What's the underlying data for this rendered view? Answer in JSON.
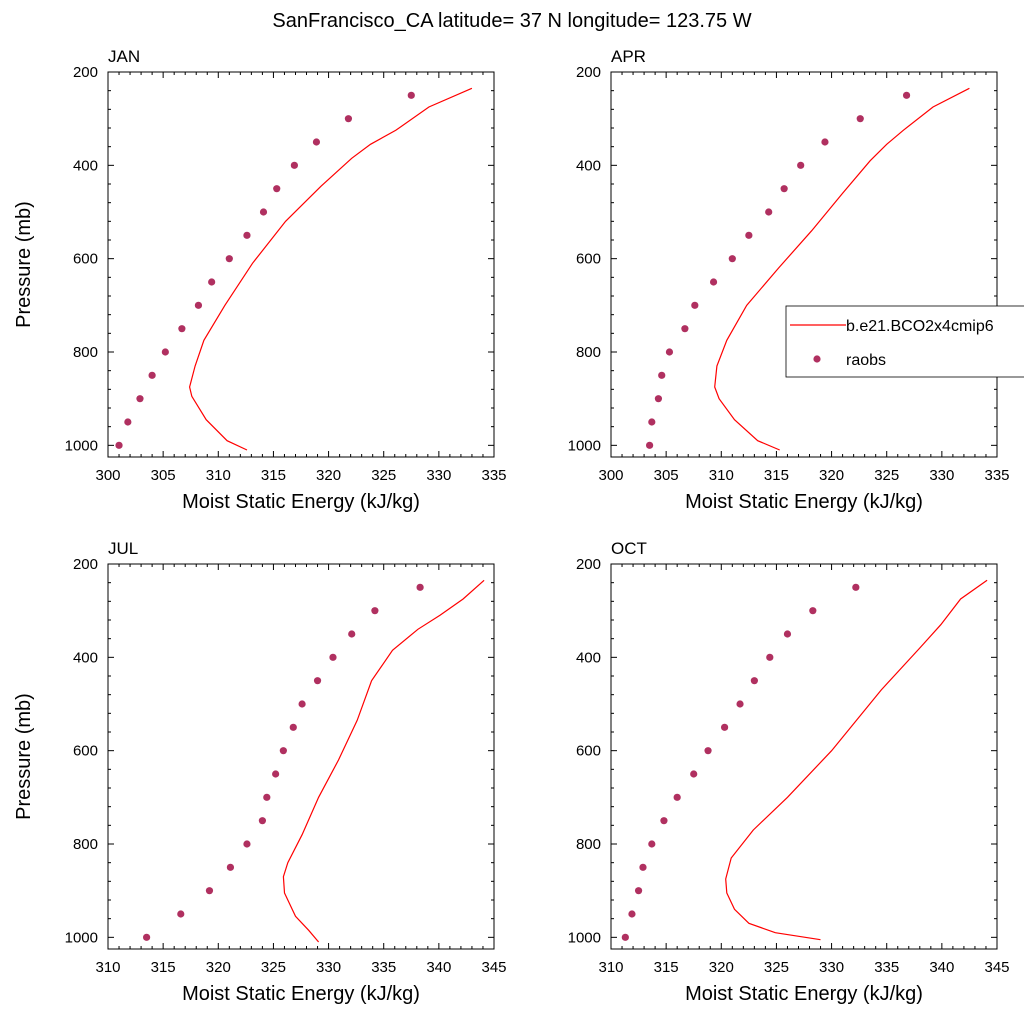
{
  "title": "SanFrancisco_CA  latitude= 37 N longitude= 123.75 W",
  "colors": {
    "model": "#ff0000",
    "obs": "#b03060"
  },
  "legend": {
    "model_label": "b.e21.BCO2x4cmip6",
    "obs_label": "raobs"
  },
  "chart_data": [
    {
      "type": "scatter",
      "title": "JAN",
      "xlabel": "Moist Static Energy (kJ/kg)",
      "ylabel": "Pressure (mb)",
      "xlim": [
        300,
        335
      ],
      "ylim": [
        1025,
        200
      ],
      "xticks": [
        300,
        305,
        310,
        315,
        320,
        325,
        330,
        335
      ],
      "yticks": [
        200,
        400,
        600,
        800,
        1000
      ],
      "series": [
        {
          "name": "b.e21.BCO2x4cmip6",
          "kind": "line",
          "x": [
            312.6,
            310.8,
            308.9,
            307.6,
            307.4,
            307.9,
            308.7,
            310.6,
            313.1,
            316.1,
            319.3,
            322.1,
            323.8,
            326.1,
            329.1,
            333.0
          ],
          "y": [
            1010,
            990,
            945,
            895,
            875,
            830,
            775,
            700,
            610,
            520,
            445,
            385,
            355,
            325,
            275,
            235
          ]
        },
        {
          "name": "raobs",
          "kind": "points",
          "x": [
            301.0,
            301.8,
            302.9,
            304.0,
            305.2,
            306.7,
            308.2,
            309.4,
            311.0,
            312.6,
            314.1,
            315.3,
            316.9,
            318.9,
            321.8,
            327.5
          ],
          "y": [
            1000,
            950,
            900,
            850,
            800,
            750,
            700,
            650,
            600,
            550,
            500,
            450,
            400,
            350,
            300,
            250
          ]
        }
      ]
    },
    {
      "type": "scatter",
      "title": "APR",
      "xlabel": "Moist Static Energy (kJ/kg)",
      "ylabel": "",
      "xlim": [
        300,
        335
      ],
      "ylim": [
        1025,
        200
      ],
      "xticks": [
        300,
        305,
        310,
        315,
        320,
        325,
        330,
        335
      ],
      "yticks": [
        200,
        400,
        600,
        800,
        1000
      ],
      "series": [
        {
          "name": "b.e21.BCO2x4cmip6",
          "kind": "line",
          "x": [
            315.3,
            313.3,
            311.2,
            309.8,
            309.4,
            309.6,
            310.5,
            312.3,
            315.2,
            318.2,
            321.0,
            323.5,
            325.0,
            326.5,
            329.2,
            332.5
          ],
          "y": [
            1010,
            990,
            945,
            900,
            875,
            830,
            775,
            700,
            620,
            540,
            460,
            390,
            355,
            325,
            275,
            235
          ]
        },
        {
          "name": "raobs",
          "kind": "points",
          "x": [
            303.5,
            303.7,
            304.3,
            304.6,
            305.3,
            306.7,
            307.6,
            309.3,
            311.0,
            312.5,
            314.3,
            315.7,
            317.2,
            319.4,
            322.6,
            326.8
          ],
          "y": [
            1000,
            950,
            900,
            850,
            800,
            750,
            700,
            650,
            600,
            550,
            500,
            450,
            400,
            350,
            300,
            250
          ]
        }
      ]
    },
    {
      "type": "scatter",
      "title": "JUL",
      "xlabel": "Moist Static Energy (kJ/kg)",
      "ylabel": "Pressure (mb)",
      "xlim": [
        310,
        345
      ],
      "ylim": [
        1025,
        200
      ],
      "xticks": [
        310,
        315,
        320,
        325,
        330,
        335,
        340,
        345
      ],
      "yticks": [
        200,
        400,
        600,
        800,
        1000
      ],
      "series": [
        {
          "name": "b.e21.BCO2x4cmip6",
          "kind": "line",
          "x": [
            329.1,
            328.2,
            327.0,
            326.0,
            325.9,
            326.3,
            327.6,
            329.1,
            330.9,
            332.6,
            333.9,
            335.8,
            338.1,
            340.1,
            342.2,
            344.1
          ],
          "y": [
            1010,
            985,
            955,
            905,
            870,
            840,
            780,
            700,
            620,
            535,
            450,
            385,
            340,
            310,
            275,
            235
          ]
        },
        {
          "name": "raobs",
          "kind": "points",
          "x": [
            313.5,
            316.6,
            319.2,
            321.1,
            322.6,
            324.0,
            324.4,
            325.2,
            325.9,
            326.8,
            327.6,
            329.0,
            330.4,
            332.1,
            334.2,
            338.3
          ],
          "y": [
            1000,
            950,
            900,
            850,
            800,
            750,
            700,
            650,
            600,
            550,
            500,
            450,
            400,
            350,
            300,
            250
          ]
        }
      ]
    },
    {
      "type": "scatter",
      "title": "OCT",
      "xlabel": "Moist Static Energy (kJ/kg)",
      "ylabel": "",
      "xlim": [
        310,
        345
      ],
      "ylim": [
        1025,
        200
      ],
      "xticks": [
        310,
        315,
        320,
        325,
        330,
        335,
        340,
        345
      ],
      "yticks": [
        200,
        400,
        600,
        800,
        1000
      ],
      "series": [
        {
          "name": "b.e21.BCO2x4cmip6",
          "kind": "line",
          "x": [
            329.0,
            324.9,
            322.5,
            321.2,
            320.5,
            320.4,
            320.9,
            322.9,
            326.0,
            330.0,
            334.5,
            338.0,
            339.9,
            341.7,
            344.1
          ],
          "y": [
            1005,
            990,
            970,
            940,
            905,
            875,
            830,
            770,
            700,
            600,
            470,
            380,
            330,
            275,
            235
          ]
        },
        {
          "name": "raobs",
          "kind": "points",
          "x": [
            311.3,
            311.9,
            312.5,
            312.9,
            313.7,
            314.8,
            316.0,
            317.5,
            318.8,
            320.3,
            321.7,
            323.0,
            324.4,
            326.0,
            328.3,
            332.2
          ],
          "y": [
            1000,
            950,
            900,
            850,
            800,
            750,
            700,
            650,
            600,
            550,
            500,
            450,
            400,
            350,
            300,
            250
          ]
        }
      ]
    }
  ]
}
